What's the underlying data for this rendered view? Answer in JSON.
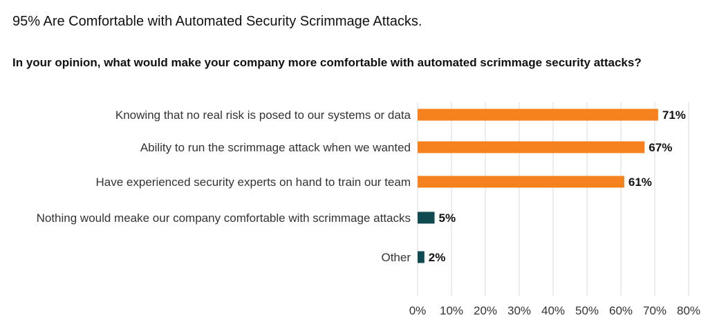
{
  "header": {
    "title": "95% Are Comfortable with Automated Security Scrimmage Attacks.",
    "question": "In your opinion, what would make your company more comfortable with automated scrimmage security attacks?"
  },
  "colors": {
    "primary_bar": "#F5811F",
    "secondary_bar": "#0E4A4F",
    "grid": "#D9D9D9"
  },
  "chart_data": {
    "type": "bar",
    "orientation": "horizontal",
    "categories": [
      "Knowing that no real risk is posed to our systems or data",
      "Ability to run the scrimmage attack when we wanted",
      "Have experienced security experts on hand to train our team",
      "Nothing would meake our company comfortable with scrimmage attacks",
      "Other"
    ],
    "values": [
      71,
      67,
      61,
      5,
      2
    ],
    "value_labels": [
      "71%",
      "67%",
      "61%",
      "5%",
      "2%"
    ],
    "bar_colors": [
      "#F5811F",
      "#F5811F",
      "#F5811F",
      "#0E4A4F",
      "#0E4A4F"
    ],
    "xlim": [
      0,
      80
    ],
    "x_ticks": [
      0,
      10,
      20,
      30,
      40,
      50,
      60,
      70,
      80
    ],
    "x_tick_labels": [
      "0%",
      "10%",
      "20%",
      "30%",
      "40%",
      "50%",
      "60%",
      "70%",
      "80%"
    ],
    "grid": true,
    "legend": "none"
  }
}
